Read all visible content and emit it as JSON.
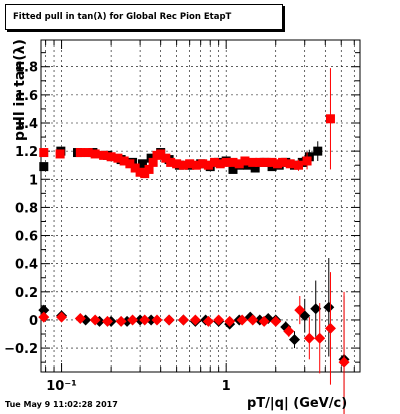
{
  "title": "Fitted pull in tan(λ) for Global Rec Pion EtapT",
  "timestamp": "Tue May  9 11:02:28 2017",
  "chart_data": {
    "type": "scatter",
    "title": "Fitted pull in tan(λ) for Global Rec Pion EtapT",
    "xlabel": "pT/|q| (GeV/c)",
    "ylabel": "pull in tan(λ)",
    "x_scale": "log",
    "xlim": [
      0.075,
      6.5
    ],
    "ylim": [
      -0.37,
      1.99
    ],
    "grid": true,
    "x_ticks": [
      {
        "v": 0.1,
        "label": "10⁻¹"
      },
      {
        "v": 1,
        "label": "1"
      }
    ],
    "y_ticks": [
      {
        "v": -0.2,
        "label": "−0.2"
      },
      {
        "v": 0,
        "label": "0"
      },
      {
        "v": 0.2,
        "label": "0.2"
      },
      {
        "v": 0.4,
        "label": "0.4"
      },
      {
        "v": 0.6,
        "label": "0.6"
      },
      {
        "v": 0.8,
        "label": "0.8"
      },
      {
        "v": 1,
        "label": "1"
      },
      {
        "v": 1.2,
        "label": "1.2"
      },
      {
        "v": 1.4,
        "label": "1.4"
      },
      {
        "v": 1.6,
        "label": "1.6"
      },
      {
        "v": 1.8,
        "label": "1.8"
      }
    ],
    "series": [
      {
        "color": "#000000",
        "marker": "square",
        "points": [
          {
            "x": 0.078,
            "y": 1.09,
            "err": 0.02
          },
          {
            "x": 0.099,
            "y": 1.2,
            "err": 0.01
          },
          {
            "x": 0.125,
            "y": 1.19,
            "err": 0.01
          },
          {
            "x": 0.155,
            "y": 1.19
          },
          {
            "x": 0.19,
            "y": 1.17
          },
          {
            "x": 0.23,
            "y": 1.14
          },
          {
            "x": 0.27,
            "y": 1.12
          },
          {
            "x": 0.31,
            "y": 1.11
          },
          {
            "x": 0.35,
            "y": 1.15
          },
          {
            "x": 0.4,
            "y": 1.19
          },
          {
            "x": 0.45,
            "y": 1.14
          },
          {
            "x": 0.52,
            "y": 1.1
          },
          {
            "x": 0.6,
            "y": 1.1
          },
          {
            "x": 0.7,
            "y": 1.11
          },
          {
            "x": 0.8,
            "y": 1.09
          },
          {
            "x": 0.9,
            "y": 1.12
          },
          {
            "x": 1.0,
            "y": 1.13
          },
          {
            "x": 1.1,
            "y": 1.07
          },
          {
            "x": 1.2,
            "y": 1.1
          },
          {
            "x": 1.35,
            "y": 1.1
          },
          {
            "x": 1.5,
            "y": 1.08
          },
          {
            "x": 1.7,
            "y": 1.12
          },
          {
            "x": 1.9,
            "y": 1.09
          },
          {
            "x": 2.1,
            "y": 1.1
          },
          {
            "x": 2.3,
            "y": 1.12
          },
          {
            "x": 2.6,
            "y": 1.1,
            "err": 0.03
          },
          {
            "x": 2.9,
            "y": 1.12,
            "err": 0.04
          },
          {
            "x": 3.2,
            "y": 1.16,
            "err": 0.05
          },
          {
            "x": 3.6,
            "y": 1.2,
            "err": 0.07
          }
        ]
      },
      {
        "color": "#ff0000",
        "marker": "square",
        "points": [
          {
            "x": 0.078,
            "y": 1.19,
            "err": 0.02
          },
          {
            "x": 0.098,
            "y": 1.18,
            "err": 0.01
          },
          {
            "x": 0.13,
            "y": 1.19
          },
          {
            "x": 0.145,
            "y": 1.19
          },
          {
            "x": 0.16,
            "y": 1.18
          },
          {
            "x": 0.18,
            "y": 1.17
          },
          {
            "x": 0.2,
            "y": 1.16
          },
          {
            "x": 0.22,
            "y": 1.15
          },
          {
            "x": 0.24,
            "y": 1.13
          },
          {
            "x": 0.26,
            "y": 1.11
          },
          {
            "x": 0.28,
            "y": 1.08
          },
          {
            "x": 0.3,
            "y": 1.05
          },
          {
            "x": 0.32,
            "y": 1.04
          },
          {
            "x": 0.34,
            "y": 1.07
          },
          {
            "x": 0.36,
            "y": 1.12
          },
          {
            "x": 0.38,
            "y": 1.17
          },
          {
            "x": 0.4,
            "y": 1.18
          },
          {
            "x": 0.43,
            "y": 1.15
          },
          {
            "x": 0.46,
            "y": 1.12
          },
          {
            "x": 0.5,
            "y": 1.11
          },
          {
            "x": 0.55,
            "y": 1.1
          },
          {
            "x": 0.6,
            "y": 1.11
          },
          {
            "x": 0.66,
            "y": 1.1
          },
          {
            "x": 0.72,
            "y": 1.11
          },
          {
            "x": 0.78,
            "y": 1.1
          },
          {
            "x": 0.85,
            "y": 1.12
          },
          {
            "x": 0.92,
            "y": 1.11
          },
          {
            "x": 1.0,
            "y": 1.12
          },
          {
            "x": 1.1,
            "y": 1.12
          },
          {
            "x": 1.2,
            "y": 1.11
          },
          {
            "x": 1.3,
            "y": 1.13
          },
          {
            "x": 1.45,
            "y": 1.12
          },
          {
            "x": 1.6,
            "y": 1.12
          },
          {
            "x": 1.75,
            "y": 1.12
          },
          {
            "x": 1.9,
            "y": 1.12
          },
          {
            "x": 2.05,
            "y": 1.11
          },
          {
            "x": 2.2,
            "y": 1.12
          },
          {
            "x": 2.45,
            "y": 1.11,
            "err": 0.03
          },
          {
            "x": 2.75,
            "y": 1.1,
            "err": 0.04
          },
          {
            "x": 3.1,
            "y": 1.13,
            "err": 0.06
          },
          {
            "x": 4.3,
            "y": 1.43,
            "err": 0.36
          }
        ]
      },
      {
        "color": "#000000",
        "marker": "diamond",
        "points": [
          {
            "x": 0.078,
            "y": 0.07,
            "err": 0.02
          },
          {
            "x": 0.1,
            "y": 0.03,
            "err": 0.01
          },
          {
            "x": 0.14,
            "y": 0.0
          },
          {
            "x": 0.17,
            "y": -0.01
          },
          {
            "x": 0.2,
            "y": -0.01
          },
          {
            "x": 0.25,
            "y": -0.01
          },
          {
            "x": 0.3,
            "y": 0.0
          },
          {
            "x": 0.35,
            "y": 0.0
          },
          {
            "x": 0.45,
            "y": 0.0
          },
          {
            "x": 0.55,
            "y": 0.0
          },
          {
            "x": 0.65,
            "y": -0.01
          },
          {
            "x": 0.75,
            "y": 0.0
          },
          {
            "x": 0.9,
            "y": -0.01
          },
          {
            "x": 1.05,
            "y": -0.03
          },
          {
            "x": 1.2,
            "y": 0.0
          },
          {
            "x": 1.4,
            "y": 0.02
          },
          {
            "x": 1.6,
            "y": 0.0
          },
          {
            "x": 1.8,
            "y": 0.01
          },
          {
            "x": 2.0,
            "y": 0.0
          },
          {
            "x": 2.3,
            "y": -0.05,
            "err": 0.04
          },
          {
            "x": 2.6,
            "y": -0.14,
            "err": 0.06
          },
          {
            "x": 3.0,
            "y": 0.03,
            "err": 0.12
          },
          {
            "x": 3.5,
            "y": 0.08,
            "err": 0.2
          },
          {
            "x": 4.2,
            "y": 0.09,
            "err": 0.35
          },
          {
            "x": 5.2,
            "y": -0.28,
            "err": 0.45
          }
        ]
      },
      {
        "color": "#ff0000",
        "marker": "diamond",
        "points": [
          {
            "x": 0.078,
            "y": 0.02,
            "err": 0.02
          },
          {
            "x": 0.1,
            "y": 0.02,
            "err": 0.01
          },
          {
            "x": 0.13,
            "y": 0.01
          },
          {
            "x": 0.16,
            "y": 0.0
          },
          {
            "x": 0.19,
            "y": -0.01
          },
          {
            "x": 0.23,
            "y": -0.01
          },
          {
            "x": 0.27,
            "y": 0.0
          },
          {
            "x": 0.32,
            "y": 0.0
          },
          {
            "x": 0.38,
            "y": 0.0
          },
          {
            "x": 0.45,
            "y": 0.0
          },
          {
            "x": 0.55,
            "y": 0.0
          },
          {
            "x": 0.65,
            "y": 0.0
          },
          {
            "x": 0.78,
            "y": -0.01
          },
          {
            "x": 0.9,
            "y": 0.0
          },
          {
            "x": 1.05,
            "y": -0.01
          },
          {
            "x": 1.25,
            "y": 0.0
          },
          {
            "x": 1.45,
            "y": 0.0
          },
          {
            "x": 1.7,
            "y": -0.01
          },
          {
            "x": 2.0,
            "y": -0.01
          },
          {
            "x": 2.4,
            "y": -0.08,
            "err": 0.04
          },
          {
            "x": 2.8,
            "y": 0.07,
            "err": 0.1
          },
          {
            "x": 3.2,
            "y": -0.13,
            "err": 0.15
          },
          {
            "x": 3.7,
            "y": -0.13,
            "err": 0.25
          },
          {
            "x": 4.3,
            "y": -0.06,
            "err": 0.4
          },
          {
            "x": 5.2,
            "y": -0.3,
            "err": 0.5
          }
        ]
      }
    ]
  }
}
